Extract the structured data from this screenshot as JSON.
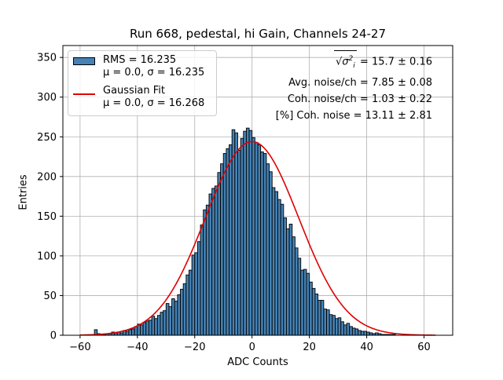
{
  "chart_data": {
    "type": "bar",
    "title": "Run 668, pedestal, hi Gain, Channels 24-27",
    "xlabel": "ADC Counts",
    "ylabel": "Entries",
    "xlim": [
      -66,
      70
    ],
    "ylim": [
      0,
      365
    ],
    "xticks": [
      -60,
      -40,
      -20,
      0,
      20,
      40,
      60
    ],
    "yticks": [
      0,
      50,
      100,
      150,
      200,
      250,
      300,
      350
    ],
    "grid": true,
    "legend_position": "top-left",
    "histogram": {
      "name": "RMS = 16.235",
      "stats": "μ = 0.0, σ = 16.235",
      "color": "#4682b4",
      "edge_color": "#000000",
      "bin_start": -60,
      "bin_width": 1,
      "counts": [
        0,
        0,
        0,
        0,
        0,
        7,
        2,
        1,
        1,
        2,
        2,
        4,
        3,
        4,
        3,
        6,
        5,
        7,
        8,
        11,
        14,
        13,
        16,
        18,
        19,
        24,
        21,
        25,
        29,
        31,
        40,
        36,
        46,
        43,
        51,
        58,
        65,
        76,
        82,
        101,
        104,
        118,
        139,
        158,
        164,
        178,
        185,
        188,
        205,
        216,
        229,
        235,
        240,
        259,
        255,
        233,
        248,
        257,
        261,
        258,
        249,
        243,
        240,
        231,
        229,
        216,
        206,
        186,
        181,
        171,
        165,
        148,
        134,
        140,
        124,
        110,
        97,
        82,
        83,
        78,
        67,
        59,
        52,
        44,
        44,
        33,
        32,
        26,
        25,
        21,
        22,
        17,
        13,
        15,
        11,
        9,
        8,
        6,
        5,
        5,
        4,
        3,
        2,
        3,
        2,
        1,
        1,
        1,
        1,
        1,
        0,
        0,
        0,
        0,
        0,
        0,
        0,
        0,
        0,
        0,
        0,
        0,
        0,
        0
      ]
    },
    "fit": {
      "name": "Gaussian Fit",
      "stats": "μ = 0.0, σ = 16.268",
      "color": "#e00000",
      "mu": 0.0,
      "sigma": 16.268,
      "amplitude": 244,
      "x_range": [
        -60,
        64
      ]
    },
    "annotations": {
      "sqrt_value": "= 15.7 ± 0.16",
      "avg_noise": "Avg. noise/ch = 7.85 ± 0.08",
      "coh_noise": "Coh. noise/ch = 1.03 ± 0.22",
      "coh_pct": "[%] Coh. noise = 13.11 ± 2.81"
    }
  },
  "sqrt_symbol": {
    "base": "σ",
    "sup": "2",
    "sub": "i"
  }
}
